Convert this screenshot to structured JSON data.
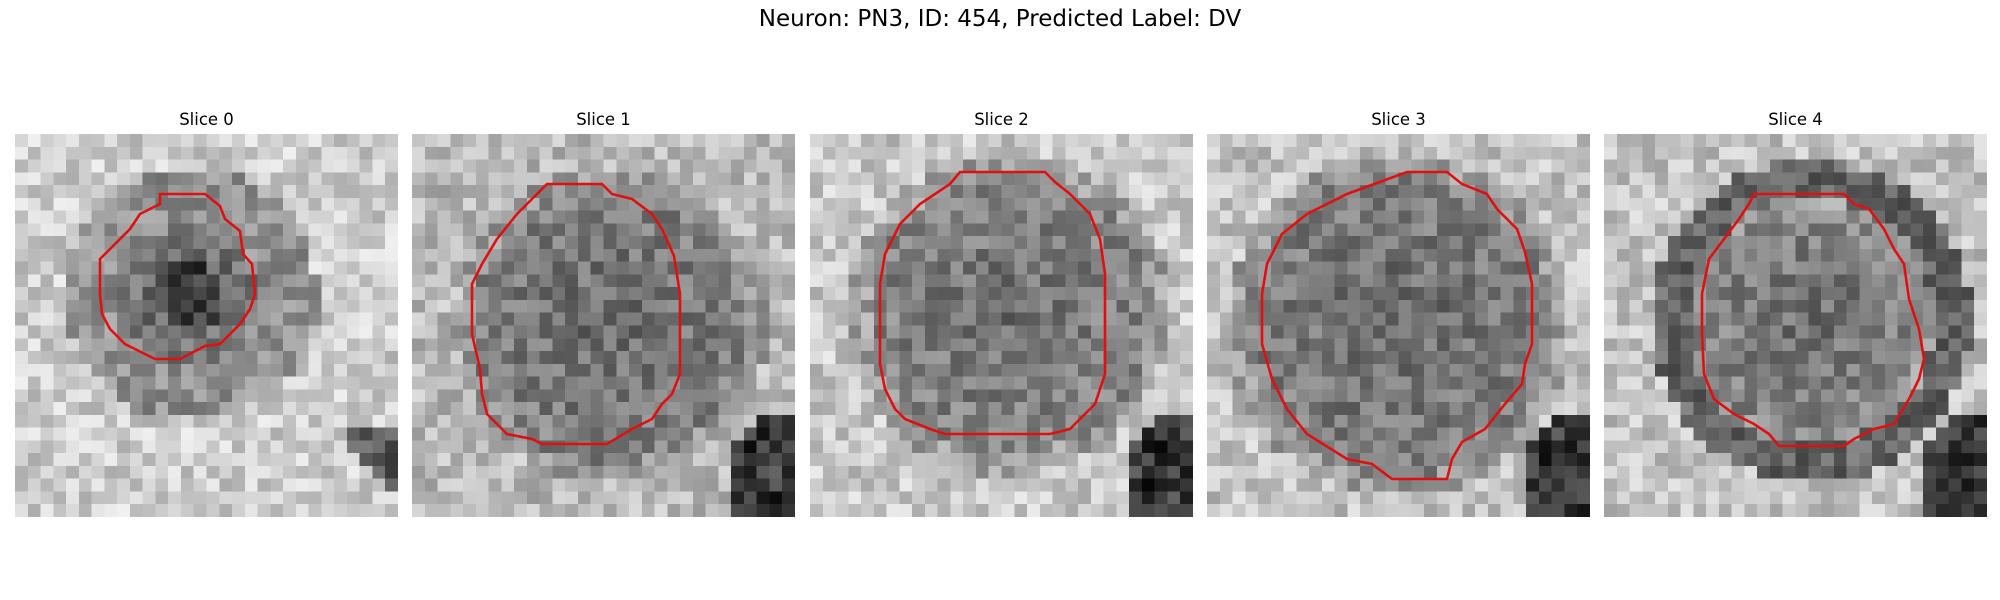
{
  "figure": {
    "title": "Neuron: PN3, ID: 454, Predicted Label: DV",
    "contour_color": "#e01010",
    "panels": [
      {
        "label": "Slice 0"
      },
      {
        "label": "Slice 1"
      },
      {
        "label": "Slice 2"
      },
      {
        "label": "Slice 3"
      },
      {
        "label": "Slice 4"
      }
    ]
  }
}
